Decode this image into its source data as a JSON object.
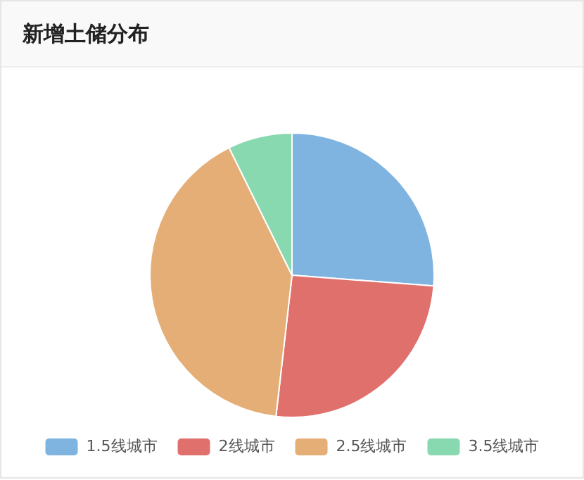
{
  "chart_data": {
    "type": "pie",
    "title": "新增土储分布",
    "categories": [
      "1.5线城市",
      "2线城市",
      "2.5线城市",
      "3.5线城市"
    ],
    "values": [
      26.2,
      25.6,
      40.9,
      7.3
    ],
    "colors": [
      "#80b4e0",
      "#e0706c",
      "#e4ae76",
      "#88d8b0"
    ],
    "legend": "bottom"
  }
}
